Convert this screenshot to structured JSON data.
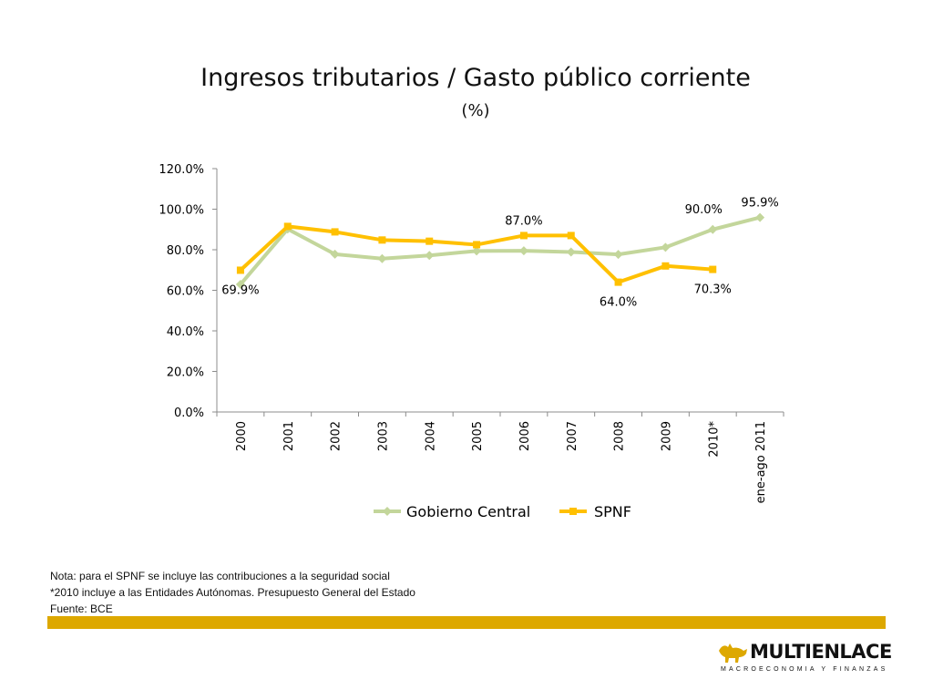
{
  "slide": {
    "title": "Ingresos tributarios / Gasto público corriente",
    "subtitle": "(%)"
  },
  "chart_data": {
    "type": "line",
    "title": "",
    "xlabel": "",
    "ylabel": "",
    "categories": [
      "2000",
      "2001",
      "2002",
      "2003",
      "2004",
      "2005",
      "2006",
      "2007",
      "2008",
      "2009",
      "2010*",
      "ene-ago 2011"
    ],
    "ylim": [
      0,
      120
    ],
    "yticks": [
      0,
      20,
      40,
      60,
      80,
      100,
      120
    ],
    "ytick_labels": [
      "0.0%",
      "20.0%",
      "40.0%",
      "60.0%",
      "80.0%",
      "100.0%",
      "120.0%"
    ],
    "grid": false,
    "legend_position": "bottom",
    "series": [
      {
        "name": "Gobierno Central",
        "color": "#C3D69B",
        "marker": "diamond",
        "values": [
          62.9,
          90.2,
          77.8,
          75.6,
          77.2,
          79.4,
          79.5,
          78.9,
          77.7,
          81.2,
          90.0,
          95.9
        ]
      },
      {
        "name": "SPNF",
        "color": "#FFC000",
        "marker": "square",
        "values": [
          69.9,
          91.5,
          88.8,
          84.8,
          84.2,
          82.5,
          87.0,
          87.0,
          64.0,
          72.0,
          70.3,
          null
        ]
      }
    ],
    "data_labels": [
      {
        "series": 1,
        "index": 0,
        "text": "69.9%",
        "pos": "below"
      },
      {
        "series": 1,
        "index": 6,
        "text": "87.0%",
        "pos": "above"
      },
      {
        "series": 1,
        "index": 8,
        "text": "64.0%",
        "pos": "below"
      },
      {
        "series": 1,
        "index": 10,
        "text": "70.3%",
        "pos": "below"
      },
      {
        "series": 0,
        "index": 10,
        "text": "90.0%",
        "pos": "above-left"
      },
      {
        "series": 0,
        "index": 11,
        "text": "95.9%",
        "pos": "above"
      }
    ]
  },
  "notes": [
    "Nota: para el SPNF se incluye las contribuciones a la seguridad social",
    "*2010 incluye a las Entidades Autónomas. Presupuesto General del Estado",
    "Fuente: BCE"
  ],
  "logo": {
    "name": "MULTIENLACE",
    "tagline": "MACROECONOMIA Y FINANZAS",
    "mark": "bull-icon"
  },
  "colors": {
    "accent_bar": "#DDA800"
  }
}
